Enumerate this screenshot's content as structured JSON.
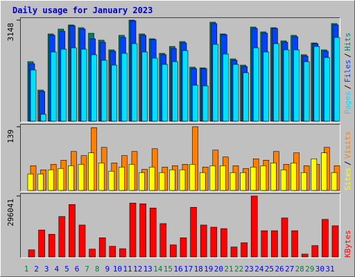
{
  "chart_data": [
    {
      "type": "bar",
      "title": "Daily usage for January 2023",
      "legend_separator": "/",
      "ylim": [
        0,
        3148
      ],
      "yticks": [
        3148
      ],
      "series": [
        {
          "name": "Hits",
          "color": "#008060",
          "values": [
            1854,
            970,
            2717,
            2868,
            2997,
            2911,
            2738,
            2523,
            2221,
            2674,
            3148,
            2717,
            2566,
            2113,
            2328,
            2480,
            1682,
            1660,
            3083,
            2717,
            1940,
            1746,
            2932,
            2781,
            2911,
            2501,
            2674,
            2070,
            2436,
            2221,
            3040
          ]
        },
        {
          "name": "Files",
          "color": "#0040ff",
          "values": [
            1790,
            927,
            2674,
            2803,
            2975,
            2868,
            2566,
            2458,
            2178,
            2609,
            3126,
            2674,
            2544,
            2070,
            2264,
            2436,
            1639,
            1639,
            3040,
            2695,
            1897,
            1703,
            2889,
            2738,
            2889,
            2458,
            2630,
            2027,
            2415,
            2178,
            2997
          ]
        },
        {
          "name": "Pages",
          "color": "#00e0ff",
          "values": [
            1596,
            216,
            2156,
            2242,
            2285,
            2242,
            2070,
            1897,
            1746,
            2113,
            2415,
            2156,
            1962,
            1768,
            1854,
            2199,
            1121,
            1100,
            2393,
            2091,
            1768,
            1509,
            2285,
            2156,
            2415,
            2221,
            2221,
            1854,
            2328,
            1984,
            2609
          ]
        }
      ]
    },
    {
      "type": "bar",
      "legend_separator": "/",
      "ylim": [
        0,
        139
      ],
      "yticks": [
        139
      ],
      "series": [
        {
          "name": "Visits",
          "color": "#ff8000",
          "values": [
            54,
            45,
            57,
            66,
            85,
            76,
            137,
            94,
            60,
            76,
            85,
            46,
            91,
            51,
            54,
            57,
            139,
            51,
            88,
            73,
            54,
            48,
            69,
            66,
            85,
            57,
            82,
            54,
            57,
            94,
            54
          ]
        },
        {
          "name": "Sites",
          "color": "#ffff00",
          "values": [
            36,
            36,
            45,
            48,
            54,
            57,
            82,
            60,
            42,
            51,
            57,
            39,
            51,
            39,
            45,
            45,
            57,
            39,
            54,
            54,
            39,
            39,
            51,
            54,
            60,
            45,
            60,
            39,
            69,
            82,
            39
          ]
        }
      ]
    },
    {
      "type": "bar",
      "ylim": [
        0,
        296041
      ],
      "yticks": [
        296041
      ],
      "categories": [
        1,
        2,
        3,
        4,
        5,
        6,
        7,
        8,
        9,
        10,
        11,
        12,
        13,
        14,
        15,
        16,
        17,
        18,
        19,
        20,
        21,
        22,
        23,
        24,
        25,
        26,
        27,
        28,
        29,
        30,
        31
      ],
      "weekend_days": [
        1,
        7,
        8,
        14,
        15,
        21,
        22,
        28,
        29
      ],
      "label_color": "#0000ff",
      "weekend_label_color": "#008040",
      "series": [
        {
          "name": "KBytes",
          "color": "#ff0000",
          "values": [
            34420,
            130800,
            110100,
            196200,
            254700,
            154900,
            37900,
            92900,
            51600,
            40000,
            261600,
            258200,
            237500,
            161800,
            58500,
            92900,
            240900,
            154900,
            144600,
            137700,
            48200,
            68800,
            296041,
            127400,
            127400,
            189300,
            127400,
            13800,
            55100,
            182400,
            151400
          ]
        }
      ]
    }
  ]
}
